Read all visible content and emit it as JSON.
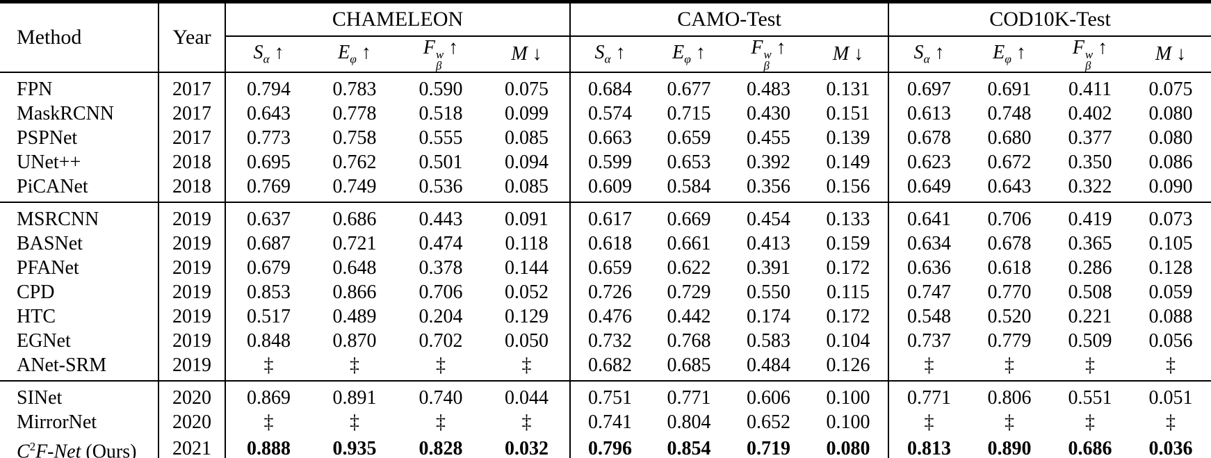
{
  "colors": {
    "text": "#000000",
    "background": "#ffffff",
    "rule": "#000000"
  },
  "table": {
    "col_method": "Method",
    "col_year": "Year",
    "groups": [
      {
        "label": "CHAMELEON"
      },
      {
        "label": "CAMO-Test"
      },
      {
        "label": "COD10K-Test"
      }
    ],
    "metrics": [
      {
        "base": "S",
        "sub": "α",
        "sup": "",
        "arrow": "↑"
      },
      {
        "base": "E",
        "sub": "φ",
        "sup": "",
        "arrow": "↑"
      },
      {
        "base": "F",
        "sub": "β",
        "sup": "w",
        "arrow": "↑"
      },
      {
        "base": "M",
        "sub": "",
        "sup": "",
        "arrow": "↓"
      }
    ],
    "missing_marker": "‡",
    "blocks": [
      {
        "rows": [
          {
            "method": "FPN",
            "year": "2017",
            "values": [
              "0.794",
              "0.783",
              "0.590",
              "0.075",
              "0.684",
              "0.677",
              "0.483",
              "0.131",
              "0.697",
              "0.691",
              "0.411",
              "0.075"
            ]
          },
          {
            "method": "MaskRCNN",
            "year": "2017",
            "values": [
              "0.643",
              "0.778",
              "0.518",
              "0.099",
              "0.574",
              "0.715",
              "0.430",
              "0.151",
              "0.613",
              "0.748",
              "0.402",
              "0.080"
            ]
          },
          {
            "method": "PSPNet",
            "year": "2017",
            "values": [
              "0.773",
              "0.758",
              "0.555",
              "0.085",
              "0.663",
              "0.659",
              "0.455",
              "0.139",
              "0.678",
              "0.680",
              "0.377",
              "0.080"
            ]
          },
          {
            "method": "UNet++",
            "year": "2018",
            "values": [
              "0.695",
              "0.762",
              "0.501",
              "0.094",
              "0.599",
              "0.653",
              "0.392",
              "0.149",
              "0.623",
              "0.672",
              "0.350",
              "0.086"
            ]
          },
          {
            "method": "PiCANet",
            "year": "2018",
            "values": [
              "0.769",
              "0.749",
              "0.536",
              "0.085",
              "0.609",
              "0.584",
              "0.356",
              "0.156",
              "0.649",
              "0.643",
              "0.322",
              "0.090"
            ]
          }
        ]
      },
      {
        "rows": [
          {
            "method": "MSRCNN",
            "year": "2019",
            "values": [
              "0.637",
              "0.686",
              "0.443",
              "0.091",
              "0.617",
              "0.669",
              "0.454",
              "0.133",
              "0.641",
              "0.706",
              "0.419",
              "0.073"
            ]
          },
          {
            "method": "BASNet",
            "year": "2019",
            "values": [
              "0.687",
              "0.721",
              "0.474",
              "0.118",
              "0.618",
              "0.661",
              "0.413",
              "0.159",
              "0.634",
              "0.678",
              "0.365",
              "0.105"
            ]
          },
          {
            "method": "PFANet",
            "year": "2019",
            "values": [
              "0.679",
              "0.648",
              "0.378",
              "0.144",
              "0.659",
              "0.622",
              "0.391",
              "0.172",
              "0.636",
              "0.618",
              "0.286",
              "0.128"
            ]
          },
          {
            "method": "CPD",
            "year": "2019",
            "values": [
              "0.853",
              "0.866",
              "0.706",
              "0.052",
              "0.726",
              "0.729",
              "0.550",
              "0.115",
              "0.747",
              "0.770",
              "0.508",
              "0.059"
            ]
          },
          {
            "method": "HTC",
            "year": "2019",
            "values": [
              "0.517",
              "0.489",
              "0.204",
              "0.129",
              "0.476",
              "0.442",
              "0.174",
              "0.172",
              "0.548",
              "0.520",
              "0.221",
              "0.088"
            ]
          },
          {
            "method": "EGNet",
            "year": "2019",
            "values": [
              "0.848",
              "0.870",
              "0.702",
              "0.050",
              "0.732",
              "0.768",
              "0.583",
              "0.104",
              "0.737",
              "0.779",
              "0.509",
              "0.056"
            ]
          },
          {
            "method": "ANet-SRM",
            "year": "2019",
            "values": [
              "‡",
              "‡",
              "‡",
              "‡",
              "0.682",
              "0.685",
              "0.484",
              "0.126",
              "‡",
              "‡",
              "‡",
              "‡"
            ]
          }
        ]
      },
      {
        "rows": [
          {
            "method": "SINet",
            "year": "2020",
            "values": [
              "0.869",
              "0.891",
              "0.740",
              "0.044",
              "0.751",
              "0.771",
              "0.606",
              "0.100",
              "0.771",
              "0.806",
              "0.551",
              "0.051"
            ]
          },
          {
            "method": "MirrorNet",
            "year": "2020",
            "values": [
              "‡",
              "‡",
              "‡",
              "‡",
              "0.741",
              "0.804",
              "0.652",
              "0.100",
              "‡",
              "‡",
              "‡",
              "‡"
            ]
          },
          {
            "method": "C²F-Net (Ours)",
            "year": "2021",
            "bold": true,
            "method_parts": [
              {
                "t": "C",
                "s": "i"
              },
              {
                "t": "2",
                "s": "sup"
              },
              {
                "t": "F-Net",
                "s": "i"
              },
              {
                "t": " (Ours)",
                "s": "n"
              }
            ],
            "values": [
              "0.888",
              "0.935",
              "0.828",
              "0.032",
              "0.796",
              "0.854",
              "0.719",
              "0.080",
              "0.813",
              "0.890",
              "0.686",
              "0.036"
            ]
          }
        ]
      }
    ]
  }
}
